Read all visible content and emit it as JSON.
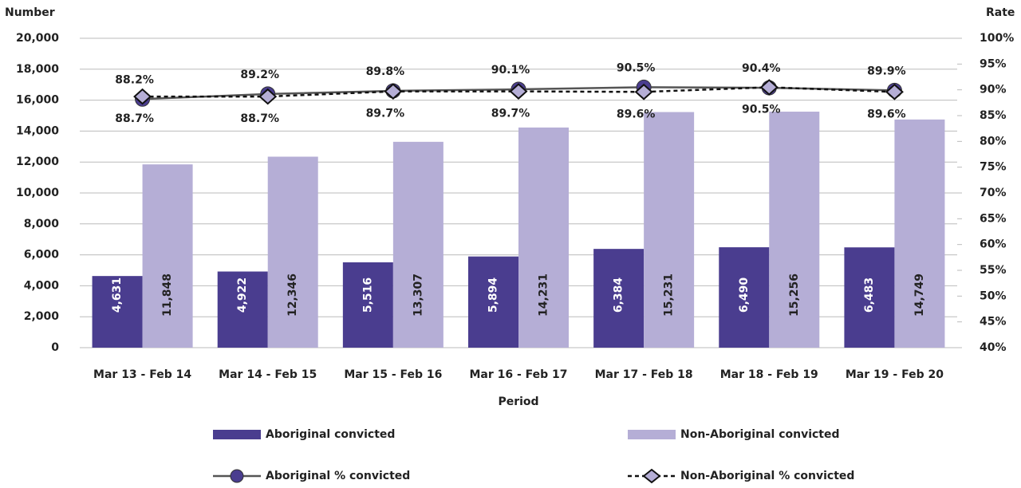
{
  "chart_data": {
    "type": "bar",
    "y_label": "Number",
    "y2_label": "Rate",
    "x_label": "Period",
    "categories": [
      "Mar 13 - Feb 14",
      "Mar 14 - Feb 15",
      "Mar 15 - Feb 16",
      "Mar 16 - Feb 17",
      "Mar 17 - Feb 18",
      "Mar 18 - Feb 19",
      "Mar 19 - Feb 20"
    ],
    "series": [
      {
        "name": "Aboriginal convicted",
        "type": "bar",
        "color": "#4a3d8f",
        "label_color": "#ffffff",
        "values": [
          4631,
          4922,
          5516,
          5894,
          6384,
          6490,
          6483
        ],
        "value_labels": [
          "4,631",
          "4,922",
          "5,516",
          "5,894",
          "6,384",
          "6,490",
          "6,483"
        ]
      },
      {
        "name": "Non-Aboriginal convicted",
        "type": "bar",
        "color": "#b5aed6",
        "label_color": "#222222",
        "values": [
          11848,
          12346,
          13307,
          14231,
          15231,
          15256,
          14749
        ],
        "value_labels": [
          "11,848",
          "12,346",
          "13,307",
          "14,231",
          "15,231",
          "15,256",
          "14,749"
        ]
      },
      {
        "name": "Aboriginal % convicted",
        "type": "line",
        "axis": "y2",
        "color": "#4a3d8f",
        "line_color": "#555555",
        "marker": "circle",
        "dash": false,
        "label_position": "above",
        "values": [
          88.2,
          89.2,
          89.8,
          90.1,
          90.5,
          90.4,
          89.9
        ],
        "value_labels": [
          "88.2%",
          "89.2%",
          "89.8%",
          "90.1%",
          "90.5%",
          "90.4%",
          "89.9%"
        ]
      },
      {
        "name": "Non-Aboriginal % convicted",
        "type": "line",
        "axis": "y2",
        "color": "#b5aed6",
        "line_color": "#111111",
        "marker": "diamond",
        "dash": true,
        "label_position": "below",
        "values": [
          88.7,
          88.7,
          89.7,
          89.7,
          89.6,
          90.5,
          89.6
        ],
        "value_labels": [
          "88.7%",
          "88.7%",
          "89.7%",
          "89.7%",
          "89.6%",
          "90.5%",
          "89.6%"
        ]
      }
    ],
    "ylim": [
      0,
      20000
    ],
    "yticks": [
      {
        "value": 0,
        "label": "0"
      },
      {
        "value": 2000,
        "label": "2,000"
      },
      {
        "value": 4000,
        "label": "4,000"
      },
      {
        "value": 6000,
        "label": "6,000"
      },
      {
        "value": 8000,
        "label": "8,000"
      },
      {
        "value": 10000,
        "label": "10,000"
      },
      {
        "value": 12000,
        "label": "12,000"
      },
      {
        "value": 14000,
        "label": "14,000"
      },
      {
        "value": 16000,
        "label": "16,000"
      },
      {
        "value": 18000,
        "label": "18,000"
      },
      {
        "value": 20000,
        "label": "20,000"
      }
    ],
    "y2lim": [
      40,
      100
    ],
    "y2ticks": [
      {
        "value": 40,
        "label": "40%"
      },
      {
        "value": 45,
        "label": "45%"
      },
      {
        "value": 50,
        "label": "50%"
      },
      {
        "value": 55,
        "label": "55%"
      },
      {
        "value": 60,
        "label": "60%"
      },
      {
        "value": 65,
        "label": "65%"
      },
      {
        "value": 70,
        "label": "70%"
      },
      {
        "value": 75,
        "label": "75%"
      },
      {
        "value": 80,
        "label": "80%"
      },
      {
        "value": 85,
        "label": "85%"
      },
      {
        "value": 90,
        "label": "90%"
      },
      {
        "value": 95,
        "label": "95%"
      },
      {
        "value": 100,
        "label": "100%"
      }
    ],
    "grid": true,
    "legend": "bottom"
  }
}
